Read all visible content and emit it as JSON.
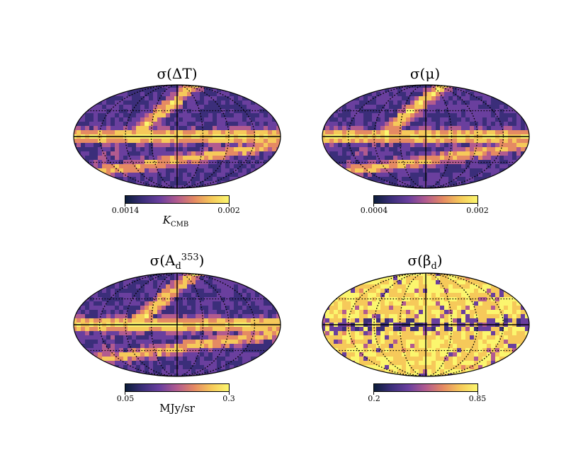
{
  "panels": [
    {
      "title_main": "σ(ΔT)",
      "cbar_min": "0.0014",
      "cbar_max": "0.002",
      "unit_main": "K",
      "unit_sub": "CMB",
      "style": "dark"
    },
    {
      "title_main": "σ(μ)",
      "cbar_min": "0.0004",
      "cbar_max": "0.002",
      "unit_main": "",
      "unit_sub": "",
      "style": "dark"
    },
    {
      "title_main": "σ(A",
      "title_sub": "d",
      "title_sup": "353",
      "title_end": ")",
      "cbar_min": "0.05",
      "cbar_max": "0.3",
      "unit_main": "MJy/sr",
      "unit_sub": "",
      "style": "dark"
    },
    {
      "title_main": "σ(β",
      "title_sub": "d",
      "title_end": ")",
      "cbar_min": "0.2",
      "cbar_max": "0.85",
      "unit_main": "",
      "unit_sub": "",
      "style": "bright"
    }
  ],
  "colormap": [
    "#0b1d3a",
    "#3b2e7a",
    "#6a3f9e",
    "#b25b8f",
    "#e58a63",
    "#f6c95a",
    "#fbf66e"
  ]
}
